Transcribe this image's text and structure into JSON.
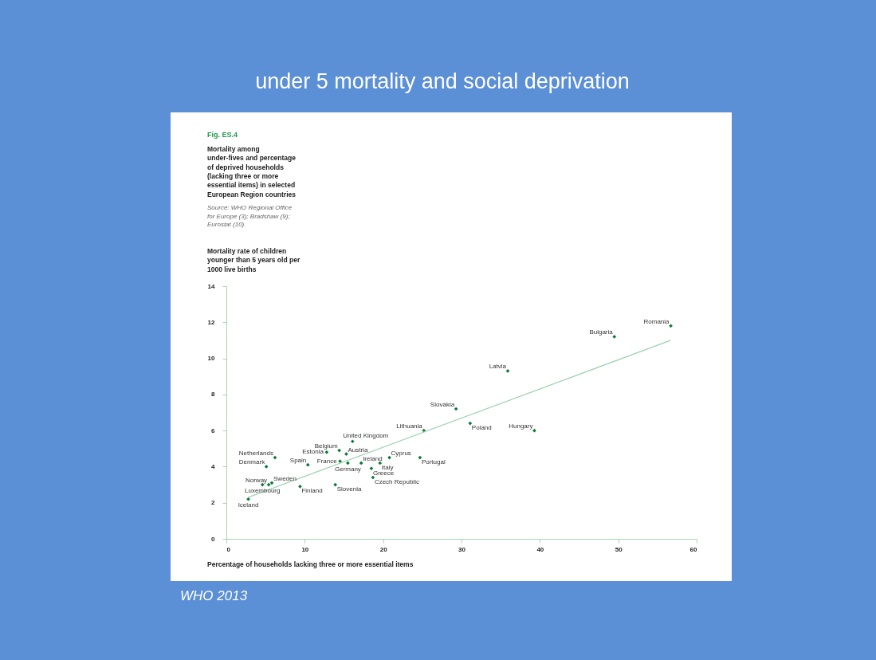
{
  "chart_data": {
    "type": "scatter",
    "title": "under 5 mortality and social deprivation",
    "subtitle": "Fig. ES.4\nMortality among\nunder-fives and percentage\nof deprived households\n(lacking three or more\nessential items) in selected\nEuropean Region countries",
    "ylabel": "Mortality rate of children\nyounger than 5 years old per\n1000 live births",
    "xlabel": "Percentage of households lacking three or more essential items",
    "xlim": [
      0,
      60
    ],
    "xticks": [
      0,
      10,
      20,
      30,
      40,
      50,
      60
    ],
    "ylim": [
      0,
      14
    ],
    "yticks": [
      0,
      2,
      4,
      6,
      8,
      10,
      12,
      14
    ],
    "grid": false,
    "marker": "diamond",
    "series": [
      {
        "color": "#0b7a35",
        "x": [
          2.8,
          4.6,
          5.4,
          5.8,
          5.1,
          6.2,
          10.4,
          9.4,
          12.8,
          14.4,
          15.3,
          14.5,
          15.5,
          16.1,
          13.9,
          17.2,
          18.5,
          18.7,
          19.6,
          20.8,
          24.7,
          25.2,
          29.3,
          31.1,
          39.3,
          35.9,
          49.5,
          56.7
        ],
        "values": [
          2.2,
          3.0,
          3.0,
          3.1,
          4.0,
          4.5,
          4.1,
          2.9,
          4.8,
          4.9,
          4.7,
          4.3,
          4.2,
          5.4,
          3.0,
          4.2,
          3.9,
          3.4,
          4.2,
          4.5,
          4.5,
          6.0,
          7.2,
          6.4,
          6.0,
          9.3,
          11.2,
          11.8
        ]
      },
      {
        "type": "line",
        "color": "#9fd3b0",
        "line_style": "solid",
        "marker": "none",
        "x": [
          2.8,
          56.7
        ],
        "values": [
          2.3,
          11.0
        ]
      }
    ],
    "annotations": [
      "Source: WHO Regional Office\nfor Europe (3); Bradshaw (9);\nEurostat (10).",
      "WHO 2013",
      {
        "text": "Iceland",
        "x": 2.8,
        "y": 2.2
      },
      {
        "text": "Luxembourg",
        "x": 4.6,
        "y": 3.0
      },
      {
        "text": "Norway",
        "x": 5.4,
        "y": 3.0
      },
      {
        "text": "Sweden",
        "x": 5.8,
        "y": 3.1
      },
      {
        "text": "Denmark",
        "x": 5.1,
        "y": 4.0
      },
      {
        "text": "Netherlands",
        "x": 6.2,
        "y": 4.5
      },
      {
        "text": "Spain",
        "x": 10.4,
        "y": 4.1
      },
      {
        "text": "Finland",
        "x": 9.4,
        "y": 2.9
      },
      {
        "text": "Estonia",
        "x": 12.8,
        "y": 4.8
      },
      {
        "text": "Belgium",
        "x": 14.4,
        "y": 4.9
      },
      {
        "text": "Austria",
        "x": 15.3,
        "y": 4.7
      },
      {
        "text": "France",
        "x": 14.5,
        "y": 4.3
      },
      {
        "text": "Germany",
        "x": 15.5,
        "y": 4.2
      },
      {
        "text": "United Kingdom",
        "x": 16.1,
        "y": 5.4
      },
      {
        "text": "Slovenia",
        "x": 13.9,
        "y": 3.0
      },
      {
        "text": "Ireland",
        "x": 17.2,
        "y": 4.2
      },
      {
        "text": "Greece",
        "x": 18.5,
        "y": 3.9
      },
      {
        "text": "Czech Republic",
        "x": 18.7,
        "y": 3.4
      },
      {
        "text": "Italy",
        "x": 19.6,
        "y": 4.2
      },
      {
        "text": "Cyprus",
        "x": 20.8,
        "y": 4.5
      },
      {
        "text": "Portugal",
        "x": 24.7,
        "y": 4.5
      },
      {
        "text": "Lithuania",
        "x": 25.2,
        "y": 6.0
      },
      {
        "text": "Slovakia",
        "x": 29.3,
        "y": 7.2
      },
      {
        "text": "Poland",
        "x": 31.1,
        "y": 6.4
      },
      {
        "text": "Hungary",
        "x": 39.3,
        "y": 6.0
      },
      {
        "text": "Latvia",
        "x": 35.9,
        "y": 9.3
      },
      {
        "text": "Bulgaria",
        "x": 49.5,
        "y": 11.2
      },
      {
        "text": "Romania",
        "x": 56.7,
        "y": 11.8
      }
    ]
  }
}
